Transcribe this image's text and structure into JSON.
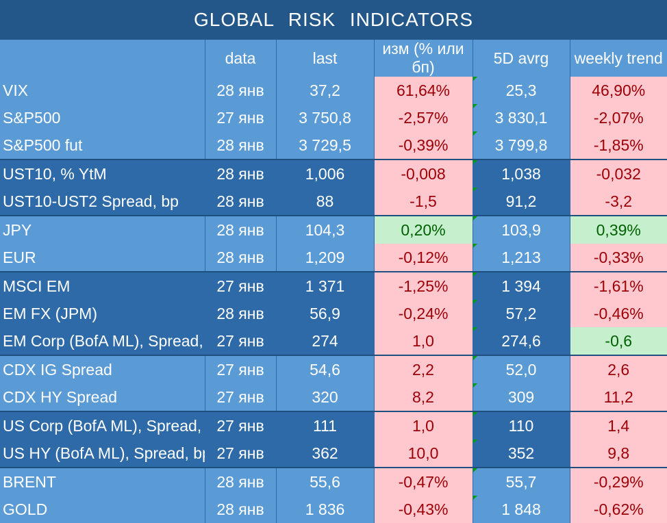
{
  "title": "GLOBAL   RISK   INDICATORS",
  "headers": [
    "",
    "data",
    "last",
    "изм (% или бп)",
    "5D avrg",
    "weekly trend"
  ],
  "rows": [
    {
      "name": "VIX",
      "date": "28 янв",
      "last": "37,2",
      "chg": "61,64%",
      "avg5": "25,3",
      "weekly": "46,90%",
      "chg_tone": "neg",
      "wk_tone": "neg",
      "shade": "light",
      "grpend": false
    },
    {
      "name": "S&P500",
      "date": "27 янв",
      "last": "3 750,8",
      "chg": "-2,57%",
      "avg5": "3 830,1",
      "weekly": "-2,07%",
      "chg_tone": "neg",
      "wk_tone": "neg",
      "shade": "light",
      "grpend": false
    },
    {
      "name": "S&P500 fut",
      "date": "28 янв",
      "last": "3 729,5",
      "chg": "-0,39%",
      "avg5": "3 799,8",
      "weekly": "-1,85%",
      "chg_tone": "neg",
      "wk_tone": "neg",
      "shade": "light",
      "grpend": true
    },
    {
      "name": "UST10, % YtM",
      "date": "28 янв",
      "last": "1,006",
      "chg": "-0,008",
      "avg5": "1,038",
      "weekly": "-0,032",
      "chg_tone": "neg",
      "wk_tone": "neg",
      "shade": "dark",
      "grpend": false
    },
    {
      "name": "UST10-UST2 Spread, bp",
      "date": "28 янв",
      "last": "88",
      "chg": "-1,5",
      "avg5": "91,2",
      "weekly": "-3,2",
      "chg_tone": "neg",
      "wk_tone": "neg",
      "shade": "dark",
      "grpend": true
    },
    {
      "name": "JPY",
      "date": "28 янв",
      "last": "104,3",
      "chg": "0,20%",
      "avg5": "103,9",
      "weekly": "0,39%",
      "chg_tone": "pos",
      "wk_tone": "pos",
      "shade": "light",
      "grpend": false
    },
    {
      "name": "EUR",
      "date": "28 янв",
      "last": "1,209",
      "chg": "-0,12%",
      "avg5": "1,213",
      "weekly": "-0,33%",
      "chg_tone": "neg",
      "wk_tone": "neg",
      "shade": "light",
      "grpend": true
    },
    {
      "name": "MSCI EM",
      "date": "27 янв",
      "last": "1 371",
      "chg": "-1,25%",
      "avg5": "1 394",
      "weekly": "-1,61%",
      "chg_tone": "neg",
      "wk_tone": "neg",
      "shade": "dark",
      "grpend": false
    },
    {
      "name": "EM FX (JPM)",
      "date": "28 янв",
      "last": "56,9",
      "chg": "-0,24%",
      "avg5": "57,2",
      "weekly": "-0,46%",
      "chg_tone": "neg",
      "wk_tone": "neg",
      "shade": "dark",
      "grpend": false
    },
    {
      "name": "EM Corp (BofA ML), Spread, bp",
      "date": "27 янв",
      "last": "274",
      "chg": "1,0",
      "avg5": "274,6",
      "weekly": "-0,6",
      "chg_tone": "neg",
      "wk_tone": "pos",
      "shade": "dark",
      "grpend": true
    },
    {
      "name": "CDX IG Spread",
      "date": "27 янв",
      "last": "54,6",
      "chg": "2,2",
      "avg5": "52,0",
      "weekly": "2,6",
      "chg_tone": "neg",
      "wk_tone": "neg",
      "shade": "light",
      "grpend": false
    },
    {
      "name": "CDX HY Spread",
      "date": "27 янв",
      "last": "320",
      "chg": "8,2",
      "avg5": "309",
      "weekly": "11,2",
      "chg_tone": "neg",
      "wk_tone": "neg",
      "shade": "light",
      "grpend": true
    },
    {
      "name": "US Corp (BofA ML), Spread, bp",
      "date": "27 янв",
      "last": "111",
      "chg": "1,0",
      "avg5": "110",
      "weekly": "1,4",
      "chg_tone": "neg",
      "wk_tone": "neg",
      "shade": "dark",
      "grpend": false
    },
    {
      "name": "US HY (BofA ML), Spread, bp",
      "date": "27 янв",
      "last": "362",
      "chg": "10,0",
      "avg5": "352",
      "weekly": "9,8",
      "chg_tone": "neg",
      "wk_tone": "neg",
      "shade": "dark",
      "grpend": true
    },
    {
      "name": "BRENT",
      "date": "28 янв",
      "last": "55,6",
      "chg": "-0,47%",
      "avg5": "55,7",
      "weekly": "-0,29%",
      "chg_tone": "neg",
      "wk_tone": "neg",
      "shade": "light",
      "grpend": false
    },
    {
      "name": "GOLD",
      "date": "28 янв",
      "last": "1 836",
      "chg": "-0,43%",
      "avg5": "1 848",
      "weekly": "-0,62%",
      "chg_tone": "neg",
      "wk_tone": "neg",
      "shade": "light",
      "grpend": false
    }
  ],
  "colors": {
    "header_bg": "#23578a",
    "light_row": "#5b9bd5",
    "dark_row": "#2e6aa8",
    "negative_fill": "#ffc7ce",
    "negative_text": "#9c0006",
    "positive_fill": "#c6efce",
    "positive_text": "#006100"
  }
}
